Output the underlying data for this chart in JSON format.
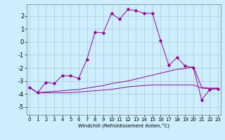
{
  "xlabel": "Windchill (Refroidissement éolien,°C)",
  "background_color": "#cceeff",
  "grid_color": "#aacccc",
  "line_color": "#990099",
  "x_ticks": [
    0,
    1,
    2,
    3,
    4,
    5,
    6,
    7,
    8,
    9,
    10,
    11,
    12,
    13,
    14,
    15,
    16,
    17,
    18,
    19,
    20,
    21,
    22,
    23
  ],
  "y_ticks": [
    -5,
    -4,
    -3,
    -2,
    -1,
    0,
    1,
    2
  ],
  "ylim": [
    -5.6,
    2.9
  ],
  "xlim": [
    -0.3,
    23.3
  ],
  "main_y": [
    -3.5,
    -3.9,
    -3.1,
    -3.2,
    -2.6,
    -2.6,
    -2.8,
    -1.35,
    0.75,
    0.7,
    2.2,
    1.75,
    2.5,
    2.4,
    2.2,
    2.2,
    0.1,
    -1.8,
    -1.2,
    -1.85,
    -2.0,
    -4.45,
    -3.65,
    -3.6
  ],
  "diag_y": [
    -3.5,
    -3.9,
    -3.85,
    -3.8,
    -3.75,
    -3.7,
    -3.65,
    -3.55,
    -3.45,
    -3.35,
    -3.2,
    -3.1,
    -3.0,
    -2.85,
    -2.7,
    -2.55,
    -2.4,
    -2.25,
    -2.1,
    -2.05,
    -1.9,
    -3.5,
    -3.55,
    -3.55
  ],
  "flat_y": [
    -3.5,
    -3.9,
    -3.9,
    -3.9,
    -3.9,
    -3.9,
    -3.85,
    -3.8,
    -3.75,
    -3.7,
    -3.65,
    -3.55,
    -3.45,
    -3.4,
    -3.35,
    -3.3,
    -3.3,
    -3.3,
    -3.3,
    -3.3,
    -3.3,
    -3.55,
    -3.6,
    -3.6
  ],
  "tick_fontsize": 5,
  "xlabel_fontsize": 5
}
